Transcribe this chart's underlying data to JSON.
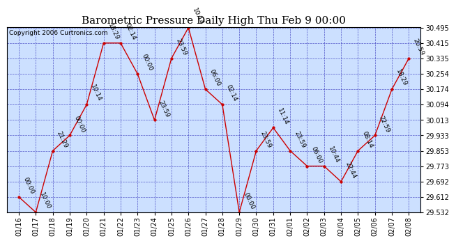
{
  "title": "Barometric Pressure Daily High Thu Feb 9 00:00",
  "copyright": "Copyright 2006 Curtronics.com",
  "x_labels": [
    "01/16",
    "01/17",
    "01/18",
    "01/19",
    "01/20",
    "01/21",
    "01/22",
    "01/23",
    "01/24",
    "01/25",
    "01/26",
    "01/27",
    "01/28",
    "01/29",
    "01/30",
    "01/31",
    "02/01",
    "02/02",
    "02/03",
    "02/04",
    "02/05",
    "02/06",
    "02/07",
    "02/08"
  ],
  "y_values": [
    29.612,
    29.532,
    29.853,
    29.933,
    30.094,
    30.415,
    30.415,
    30.254,
    30.013,
    30.335,
    30.495,
    30.174,
    30.094,
    29.532,
    29.853,
    29.973,
    29.853,
    29.773,
    29.773,
    29.692,
    29.853,
    29.933,
    30.174,
    30.335
  ],
  "point_labels": [
    "00:00",
    "10:00",
    "21:29",
    "00:00",
    "10:14",
    "18:29",
    "02:14",
    "00:00",
    "23:59",
    "23:59",
    "10:14",
    "06:00",
    "02:14",
    "00:00",
    "23:59",
    "11:14",
    "23:59",
    "06:00",
    "10:44",
    "22:44",
    "08:14",
    "22:59",
    "18:29",
    "20:59"
  ],
  "ylim_min": 29.532,
  "ylim_max": 30.495,
  "yticks": [
    29.532,
    29.612,
    29.692,
    29.773,
    29.853,
    29.933,
    30.013,
    30.094,
    30.174,
    30.254,
    30.335,
    30.415,
    30.495
  ],
  "line_color": "#cc0000",
  "marker_color": "#cc0000",
  "background_color": "#ffffff",
  "plot_bg_color": "#cce0ff",
  "grid_color": "#3333bb",
  "title_fontsize": 11,
  "tick_fontsize": 7,
  "annotation_fontsize": 6.5
}
